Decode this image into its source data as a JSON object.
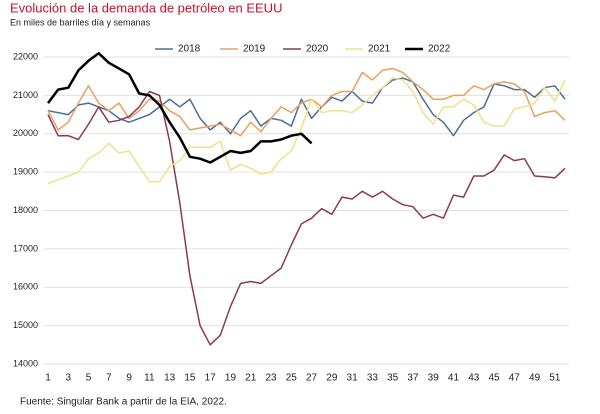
{
  "chart_data": {
    "type": "line",
    "title": "Evolución de la demanda de petróleo en EEUU",
    "subtitle": "En miles de barriles día y semanas",
    "source": "Fuente:  Singular Bank a partir de la EIA, 2022.",
    "x": [
      1,
      2,
      3,
      4,
      5,
      6,
      7,
      8,
      9,
      10,
      11,
      12,
      13,
      14,
      15,
      16,
      17,
      18,
      19,
      20,
      21,
      22,
      23,
      24,
      25,
      26,
      27,
      28,
      29,
      30,
      31,
      32,
      33,
      34,
      35,
      36,
      37,
      38,
      39,
      40,
      41,
      42,
      43,
      44,
      45,
      46,
      47,
      48,
      49,
      50,
      51,
      52
    ],
    "xlim": [
      1,
      52
    ],
    "xticks": [
      1,
      3,
      5,
      7,
      9,
      11,
      13,
      15,
      17,
      19,
      21,
      23,
      25,
      27,
      29,
      31,
      33,
      35,
      37,
      39,
      41,
      43,
      45,
      47,
      49,
      51
    ],
    "ylim": [
      14000,
      22000
    ],
    "yticks": [
      14000,
      15000,
      16000,
      17000,
      18000,
      19000,
      20000,
      21000,
      22000
    ],
    "grid": true,
    "legend": "top",
    "series": [
      {
        "name": "2018",
        "color": "#4a6f96",
        "values": [
          20600,
          20550,
          20500,
          20750,
          20800,
          20700,
          20600,
          20400,
          20300,
          20400,
          20500,
          20700,
          20900,
          20700,
          20900,
          20400,
          20100,
          20300,
          20000,
          20400,
          20600,
          20200,
          20400,
          20350,
          20200,
          20900,
          20400,
          20700,
          20950,
          20850,
          21100,
          20850,
          20800,
          21200,
          21400,
          21450,
          21350,
          20900,
          20500,
          20300,
          19950,
          20350,
          20550,
          20700,
          21300,
          21250,
          21150,
          21150,
          20950,
          21200,
          21250,
          20900
        ]
      },
      {
        "name": "2019",
        "color": "#e8a060",
        "values": [
          20600,
          20100,
          20300,
          20800,
          21250,
          20800,
          20600,
          20800,
          20400,
          20600,
          20900,
          20850,
          20600,
          20450,
          20100,
          20150,
          20200,
          20250,
          20100,
          19950,
          20300,
          20050,
          20400,
          20700,
          20550,
          20800,
          20900,
          20700,
          21000,
          21100,
          21100,
          21600,
          21400,
          21650,
          21700,
          21600,
          21350,
          21150,
          20900,
          20900,
          21000,
          21000,
          21250,
          21150,
          21300,
          21350,
          21300,
          21100,
          20450,
          20550,
          20600,
          20350
        ]
      },
      {
        "name": "2020",
        "color": "#8b3a55",
        "values": [
          20500,
          19950,
          19950,
          19850,
          20250,
          20700,
          20300,
          20350,
          20450,
          20700,
          21100,
          21000,
          19800,
          18200,
          16300,
          15000,
          14500,
          14750,
          15500,
          16100,
          16150,
          16100,
          16300,
          16500,
          17100,
          17650,
          17800,
          18050,
          17900,
          18350,
          18300,
          18500,
          18350,
          18500,
          18300,
          18150,
          18100,
          17800,
          17900,
          17800,
          18400,
          18350,
          18900,
          18900,
          19050,
          19450,
          19300,
          19350,
          18900,
          18880,
          18850,
          19100
        ]
      },
      {
        "name": "2021",
        "color": "#f0e08a",
        "values": [
          18700,
          18800,
          18900,
          19000,
          19350,
          19500,
          19750,
          19500,
          19550,
          19150,
          18750,
          18750,
          19150,
          19300,
          19650,
          19650,
          19650,
          19800,
          19050,
          19200,
          19100,
          18950,
          19000,
          19350,
          19550,
          20150,
          20900,
          20550,
          20600,
          20600,
          20550,
          20750,
          21000,
          21200,
          21450,
          21400,
          21100,
          20550,
          20250,
          20700,
          20700,
          20900,
          20750,
          20300,
          20200,
          20200,
          20650,
          20700,
          20800,
          21200,
          20850,
          21400
        ]
      },
      {
        "name": "2022",
        "color": "#000000",
        "values": [
          20800,
          21150,
          21200,
          21650,
          21900,
          22100,
          21850,
          21700,
          21550,
          21050,
          21000,
          20750,
          20300,
          19900,
          19400,
          19350,
          19250,
          19400,
          19550,
          19500,
          19550,
          19800,
          19800,
          19850,
          19950,
          20000,
          19750,
          null,
          null,
          null,
          null,
          null,
          null,
          null,
          null,
          null,
          null,
          null,
          null,
          null,
          null,
          null,
          null,
          null,
          null,
          null,
          null,
          null,
          null,
          null,
          null,
          null
        ]
      }
    ]
  }
}
